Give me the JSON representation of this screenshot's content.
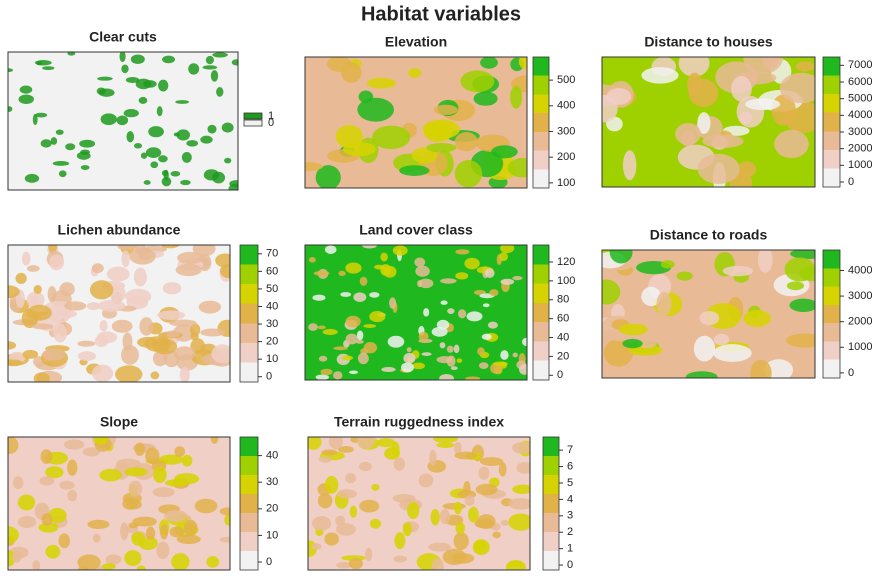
{
  "title": "Habitat variables",
  "chart_data": [
    {
      "type": "raster",
      "title": "Clear cuts",
      "legend": [
        {
          "name": "1",
          "color": "#1f9a1f"
        },
        {
          "name": "0",
          "color": "#f2f2f2"
        }
      ]
    },
    {
      "type": "raster",
      "title": "Elevation",
      "zlim": [
        80,
        590
      ],
      "zticks": [
        100,
        200,
        300,
        400,
        500
      ],
      "colors": [
        "#f2f2f2",
        "#f0cfc6",
        "#e8bb96",
        "#e2b24a",
        "#d6d400",
        "#9fd000",
        "#1fb91f"
      ]
    },
    {
      "type": "raster",
      "title": "Distance to houses",
      "zlim": [
        -300,
        7500
      ],
      "zticks": [
        0,
        1000,
        2000,
        3000,
        4000,
        5000,
        6000,
        7000
      ],
      "colors": [
        "#f2f2f2",
        "#f0cfc6",
        "#e8bb96",
        "#e2b24a",
        "#d6d400",
        "#9fd000",
        "#1fb91f"
      ]
    },
    {
      "type": "raster",
      "title": "Lichen abundance",
      "zlim": [
        -3,
        75
      ],
      "zticks": [
        0,
        10,
        20,
        30,
        40,
        50,
        60,
        70
      ],
      "colors": [
        "#f2f2f2",
        "#f0cfc6",
        "#e8bb96",
        "#e2b24a",
        "#d6d400",
        "#9fd000",
        "#1fb91f"
      ]
    },
    {
      "type": "raster",
      "title": "Land cover class",
      "zlim": [
        -5,
        138
      ],
      "zticks": [
        0,
        20,
        40,
        60,
        80,
        100,
        120
      ],
      "colors": [
        "#f2f2f2",
        "#f0cfc6",
        "#e8bb96",
        "#e2b24a",
        "#d6d400",
        "#9fd000",
        "#1fb91f"
      ]
    },
    {
      "type": "raster",
      "title": "Distance to roads",
      "zlim": [
        -200,
        4800
      ],
      "zticks": [
        0,
        1000,
        2000,
        3000,
        4000
      ],
      "colors": [
        "#f2f2f2",
        "#f0cfc6",
        "#e8bb96",
        "#e2b24a",
        "#d6d400",
        "#9fd000",
        "#1fb91f"
      ]
    },
    {
      "type": "raster",
      "title": "Slope",
      "zlim": [
        -3,
        47
      ],
      "zticks": [
        0,
        10,
        20,
        30,
        40
      ],
      "colors": [
        "#f2f2f2",
        "#f0cfc6",
        "#e8bb96",
        "#e2b24a",
        "#d6d400",
        "#9fd000",
        "#1fb91f"
      ]
    },
    {
      "type": "raster",
      "title": "Terrain ruggedness index",
      "zlim": [
        -0.3,
        7.8
      ],
      "zticks": [
        0,
        1,
        2,
        3,
        4,
        5,
        6,
        7
      ],
      "colors": [
        "#f2f2f2",
        "#f0cfc6",
        "#e8bb96",
        "#e2b24a",
        "#d6d400",
        "#9fd000",
        "#1fb91f"
      ]
    }
  ]
}
